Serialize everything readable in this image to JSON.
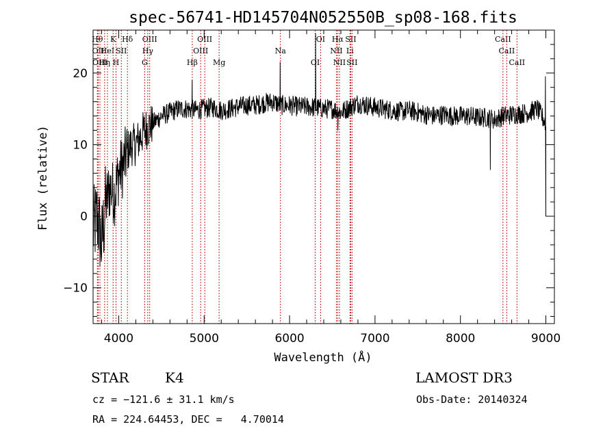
{
  "chart_data": {
    "type": "line",
    "title": "spec-56741-HD145704N052550B_sp08-168.fits",
    "xlabel": "Wavelength (Å)",
    "ylabel": "Flux (relative)",
    "xlim": [
      3700,
      9100
    ],
    "ylim": [
      -15,
      26
    ],
    "xticks": [
      4000,
      5000,
      6000,
      7000,
      8000,
      9000
    ],
    "yticks": [
      -10,
      0,
      10,
      20
    ],
    "spectrum_anchors": {
      "x": [
        3700,
        3750,
        3800,
        3850,
        3900,
        3950,
        4000,
        4050,
        4100,
        4150,
        4200,
        4250,
        4300,
        4350,
        4400,
        4450,
        4500,
        4600,
        4700,
        4800,
        4900,
        5000,
        5100,
        5200,
        5300,
        5400,
        5500,
        5600,
        5700,
        5800,
        5900,
        6000,
        6100,
        6200,
        6300,
        6400,
        6500,
        6600,
        6700,
        6800,
        6900,
        7000,
        7100,
        7200,
        7300,
        7400,
        7500,
        7600,
        7700,
        7800,
        7900,
        8000,
        8100,
        8200,
        8300,
        8400,
        8500,
        8600,
        8700,
        8800,
        8900,
        9000
      ],
      "y": [
        -2,
        0,
        -4,
        2,
        4,
        3,
        6,
        7,
        9,
        10,
        10,
        11,
        12,
        12.5,
        13,
        13.5,
        14,
        14.5,
        15,
        15,
        14.8,
        15,
        15.2,
        14.8,
        15,
        15.3,
        15.5,
        15.5,
        15.8,
        16,
        15.5,
        15.5,
        15.3,
        15.3,
        15.2,
        15,
        15,
        14.5,
        15.2,
        15.8,
        15.5,
        15.2,
        15,
        14.8,
        14.6,
        14.8,
        14.5,
        14.2,
        14,
        14.2,
        14,
        14,
        14,
        13.8,
        13.8,
        13.5,
        14,
        14.2,
        14.3,
        14.5,
        15,
        13
      ]
    },
    "spikes": [
      {
        "x": 4860,
        "y": 19
      },
      {
        "x": 5890,
        "y": 21.5
      },
      {
        "x": 6305,
        "y": 25.5
      },
      {
        "x": 6565,
        "y": 12
      },
      {
        "x": 8350,
        "y": 6.5
      },
      {
        "x": 8995,
        "y": 19.5
      },
      {
        "x": 9000,
        "y": 0
      }
    ],
    "spectral_lines": [
      {
        "x": 3750,
        "label": "Hθ",
        "row": 1
      },
      {
        "x": 3760,
        "label": "OII",
        "row": 2
      },
      {
        "x": 3780,
        "label": "OIII",
        "row": 3
      },
      {
        "x": 3835,
        "label": "Hη",
        "row": 3
      },
      {
        "x": 3868,
        "label": "HeI",
        "row": 2
      },
      {
        "x": 3934,
        "label": "K",
        "row": 1
      },
      {
        "x": 3968,
        "label": "H",
        "row": 3
      },
      {
        "x": 4030,
        "label": "SII",
        "row": 2
      },
      {
        "x": 4102,
        "label": "Hδ",
        "row": 1
      },
      {
        "x": 4304,
        "label": "G",
        "row": 3
      },
      {
        "x": 4340,
        "label": "Hγ",
        "row": 2
      },
      {
        "x": 4363,
        "label": "OIII",
        "row": 1
      },
      {
        "x": 4861,
        "label": "Hβ",
        "row": 3
      },
      {
        "x": 4959,
        "label": "OIII",
        "row": 2
      },
      {
        "x": 5007,
        "label": "OIII",
        "row": 1
      },
      {
        "x": 5175,
        "label": "Mg",
        "row": 3
      },
      {
        "x": 5893,
        "label": "Na",
        "row": 2
      },
      {
        "x": 6300,
        "label": "OI",
        "row": 3
      },
      {
        "x": 6363,
        "label": "OI",
        "row": 1
      },
      {
        "x": 6548,
        "label": "NII",
        "row": 2
      },
      {
        "x": 6563,
        "label": "Hα",
        "row": 1
      },
      {
        "x": 6584,
        "label": "NII",
        "row": 3
      },
      {
        "x": 6707,
        "label": "Li",
        "row": 2
      },
      {
        "x": 6716,
        "label": "SII",
        "row": 1
      },
      {
        "x": 6731,
        "label": "SII",
        "row": 3
      },
      {
        "x": 8498,
        "label": "CaII",
        "row": 1
      },
      {
        "x": 8542,
        "label": "CaII",
        "row": 2
      },
      {
        "x": 8662,
        "label": "CaII",
        "row": 3
      }
    ]
  },
  "info": {
    "class_type": "STAR",
    "subclass": "K4",
    "redshift_line": "cz = −121.6 ± 31.1 km/s",
    "coords_line": "RA = 224.64453, DEC =   4.70014",
    "survey": "LAMOST DR3",
    "obs_date_line": "Obs-Date: 20140324"
  }
}
